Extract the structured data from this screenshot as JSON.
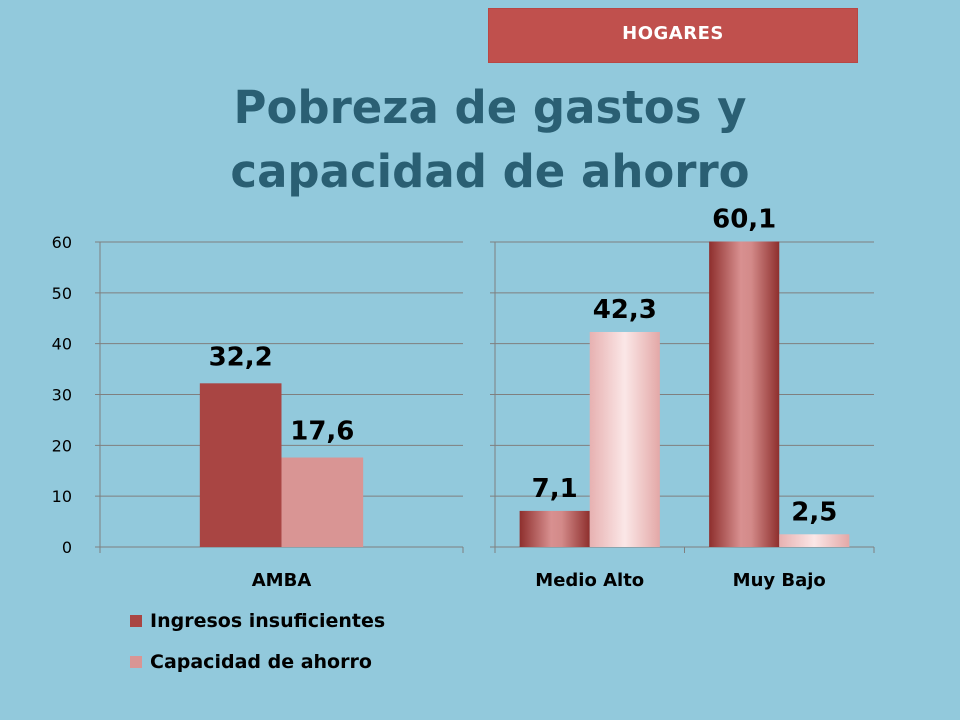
{
  "header": {
    "badge": "HOGARES",
    "title_line1": "Pobreza de gastos y",
    "title_line2": "capacidad de ahorro"
  },
  "colors": {
    "background": "#92c9dc",
    "badge": "#c0504d",
    "title": "#2a5f73",
    "ingresos": "#a94543",
    "ahorro": "#d99594"
  },
  "chart_data": [
    {
      "type": "bar",
      "categories": [
        "AMBA"
      ],
      "series": [
        {
          "name": "Ingresos insuficientes",
          "values": [
            32.2
          ]
        },
        {
          "name": "Capacidad de ahorro",
          "values": [
            17.6
          ]
        }
      ],
      "data_labels": [
        [
          "32,2"
        ],
        [
          "17,6"
        ]
      ],
      "ylim": [
        0,
        60
      ],
      "yticks": [
        0,
        10,
        20,
        30,
        40,
        50,
        60
      ],
      "grid": true,
      "legend": "bottom-left"
    },
    {
      "type": "bar",
      "categories": [
        "Medio Alto",
        "Muy Bajo"
      ],
      "series": [
        {
          "name": "Ingresos insuficientes",
          "values": [
            7.1,
            60.1
          ]
        },
        {
          "name": "Capacidad de ahorro",
          "values": [
            42.3,
            2.5
          ]
        }
      ],
      "data_labels": [
        [
          "7,1",
          "60,1"
        ],
        [
          "42,3",
          "2,5"
        ]
      ],
      "ylim": [
        0,
        60
      ],
      "grid": true
    }
  ],
  "legend": {
    "items": [
      {
        "label": "Ingresos insuficientes"
      },
      {
        "label": "Capacidad de ahorro"
      }
    ]
  }
}
